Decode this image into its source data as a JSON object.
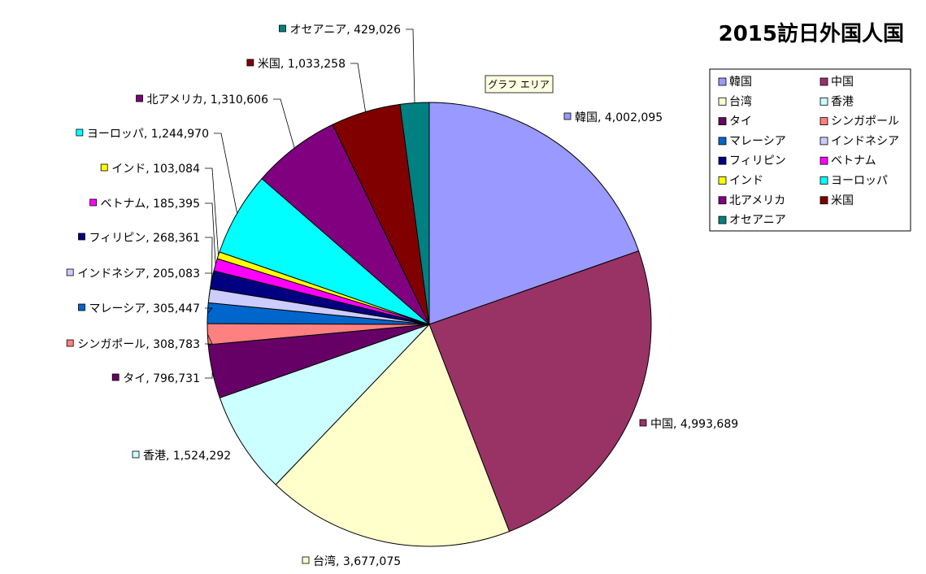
{
  "tooltip": "グラフ エリア",
  "chart_data": {
    "type": "pie",
    "title": "2015訪日外国人国",
    "legend_position": "right",
    "start_angle_deg": 0,
    "direction": "clockwise",
    "slices": [
      {
        "name": "韓国",
        "value": 4002095,
        "color": "#9999FF",
        "label": "韓国, 4,002,095"
      },
      {
        "name": "中国",
        "value": 4993689,
        "color": "#993366",
        "label": "中国, 4,993,689"
      },
      {
        "name": "台湾",
        "value": 3677075,
        "color": "#FFFFCC",
        "label": "台湾, 3,677,075"
      },
      {
        "name": "香港",
        "value": 1524292,
        "color": "#CCFFFF",
        "label": "香港, 1,524,292"
      },
      {
        "name": "タイ",
        "value": 796731,
        "color": "#660066",
        "label": "タイ, 796,731"
      },
      {
        "name": "シンガポール",
        "value": 308783,
        "color": "#FF8080",
        "label": "シンガポール, 308,783"
      },
      {
        "name": "マレーシア",
        "value": 305447,
        "color": "#0066CC",
        "label": "マレーシア, 305,447"
      },
      {
        "name": "インドネシア",
        "value": 205083,
        "color": "#CCCCFF",
        "label": "インドネシア, 205,083"
      },
      {
        "name": "フィリピン",
        "value": 268361,
        "color": "#000080",
        "label": "フィリピン, 268,361"
      },
      {
        "name": "ベトナム",
        "value": 185395,
        "color": "#FF00FF",
        "label": "ベトナム, 185,395"
      },
      {
        "name": "インド",
        "value": 103084,
        "color": "#FFFF00",
        "label": "インド, 103,084"
      },
      {
        "name": "ヨーロッパ",
        "value": 1244970,
        "color": "#00FFFF",
        "label": "ヨーロッパ, 1,244,970"
      },
      {
        "name": "北アメリカ",
        "value": 1310606,
        "color": "#800080",
        "label": "北アメリカ, 1,310,606"
      },
      {
        "name": "米国",
        "value": 1033258,
        "color": "#800000",
        "label": "米国, 1,033,258"
      },
      {
        "name": "オセアニア",
        "value": 429026,
        "color": "#008080",
        "label": "オセアニア, 429,026"
      }
    ]
  }
}
